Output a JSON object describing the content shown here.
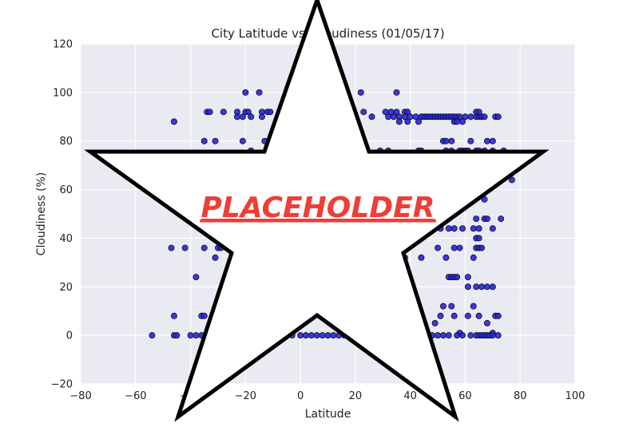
{
  "chart_data": {
    "type": "scatter",
    "title": "City Latitude vs. Cloudiness (01/05/17)",
    "xlabel": "Latitude",
    "ylabel": "Cloudiness (%)",
    "xlim": [
      -80,
      100
    ],
    "ylim": [
      -20,
      120
    ],
    "xticks": [
      -80,
      -60,
      -40,
      -20,
      0,
      20,
      40,
      60,
      80,
      100
    ],
    "yticks": [
      -20,
      0,
      20,
      40,
      60,
      80,
      100,
      120
    ],
    "grid": true,
    "colors": {
      "background": "#eaeaf2",
      "grid": "#ffffff",
      "point": "#2323e6",
      "point_edge": "#111111"
    },
    "series": [
      {
        "points": [
          [
            -54,
            0
          ],
          [
            -46,
            0
          ],
          [
            -45,
            0
          ],
          [
            -40,
            0
          ],
          [
            -38,
            0
          ],
          [
            -36,
            0
          ],
          [
            -34,
            0
          ],
          [
            -32,
            0
          ],
          [
            -46,
            8
          ],
          [
            -36,
            8
          ],
          [
            -35,
            8
          ],
          [
            -38,
            24
          ],
          [
            -47,
            36
          ],
          [
            -42,
            36
          ],
          [
            -35,
            36
          ],
          [
            -30,
            36
          ],
          [
            -29,
            36
          ],
          [
            -31,
            32
          ],
          [
            -46,
            88
          ],
          [
            -34,
            92
          ],
          [
            -33,
            92
          ],
          [
            -28,
            92
          ],
          [
            -23,
            92
          ],
          [
            -20,
            92
          ],
          [
            -19,
            92
          ],
          [
            -14,
            92
          ],
          [
            -12,
            92
          ],
          [
            -11,
            92
          ],
          [
            -23,
            90
          ],
          [
            -21,
            90
          ],
          [
            -18,
            90
          ],
          [
            -14,
            90
          ],
          [
            -35,
            80
          ],
          [
            -31,
            80
          ],
          [
            -21,
            80
          ],
          [
            -13,
            80
          ],
          [
            -18,
            76
          ],
          [
            -20,
            100
          ],
          [
            -15,
            100
          ],
          [
            -3,
            0
          ],
          [
            0,
            0
          ],
          [
            2,
            0
          ],
          [
            4,
            0
          ],
          [
            6,
            0
          ],
          [
            8,
            0
          ],
          [
            10,
            0
          ],
          [
            12,
            0
          ],
          [
            14,
            0
          ],
          [
            16,
            0
          ],
          [
            18,
            0
          ],
          [
            45,
            0
          ],
          [
            48,
            0
          ],
          [
            22,
            100
          ],
          [
            35,
            100
          ],
          [
            23,
            92
          ],
          [
            31,
            92
          ],
          [
            33,
            92
          ],
          [
            35,
            92
          ],
          [
            38,
            92
          ],
          [
            39,
            92
          ],
          [
            26,
            90
          ],
          [
            32,
            90
          ],
          [
            34,
            90
          ],
          [
            36,
            90
          ],
          [
            38,
            90
          ],
          [
            40,
            90
          ],
          [
            42,
            90
          ],
          [
            44,
            90
          ],
          [
            45,
            90
          ],
          [
            46,
            90
          ],
          [
            47,
            90
          ],
          [
            48,
            90
          ],
          [
            49,
            90
          ],
          [
            50,
            90
          ],
          [
            51,
            90
          ],
          [
            52,
            90
          ],
          [
            53,
            90
          ],
          [
            54,
            90
          ],
          [
            55,
            90
          ],
          [
            56,
            90
          ],
          [
            57,
            90
          ],
          [
            58,
            90
          ],
          [
            60,
            90
          ],
          [
            62,
            90
          ],
          [
            64,
            90
          ],
          [
            65,
            90
          ],
          [
            66,
            90
          ],
          [
            67,
            90
          ],
          [
            71,
            90
          ],
          [
            72,
            90
          ],
          [
            36,
            88
          ],
          [
            39,
            88
          ],
          [
            43,
            88
          ],
          [
            56,
            88
          ],
          [
            57,
            88
          ],
          [
            59,
            88
          ],
          [
            64,
            92
          ],
          [
            65,
            92
          ],
          [
            29,
            76
          ],
          [
            32,
            76
          ],
          [
            43,
            76
          ],
          [
            44,
            76
          ],
          [
            53,
            76
          ],
          [
            55,
            76
          ],
          [
            58,
            76
          ],
          [
            59,
            76
          ],
          [
            60,
            76
          ],
          [
            61,
            76
          ],
          [
            64,
            76
          ],
          [
            65,
            76
          ],
          [
            67,
            76
          ],
          [
            70,
            76
          ],
          [
            74,
            76
          ],
          [
            52,
            80
          ],
          [
            53,
            80
          ],
          [
            55,
            80
          ],
          [
            62,
            80
          ],
          [
            68,
            80
          ],
          [
            70,
            80
          ],
          [
            77,
            64
          ],
          [
            67,
            56
          ],
          [
            64,
            48
          ],
          [
            67,
            48
          ],
          [
            68,
            48
          ],
          [
            73,
            48
          ],
          [
            51,
            44
          ],
          [
            54,
            44
          ],
          [
            56,
            44
          ],
          [
            59,
            44
          ],
          [
            63,
            44
          ],
          [
            65,
            44
          ],
          [
            70,
            44
          ],
          [
            64,
            40
          ],
          [
            65,
            40
          ],
          [
            50,
            36
          ],
          [
            56,
            36
          ],
          [
            58,
            36
          ],
          [
            64,
            36
          ],
          [
            65,
            36
          ],
          [
            66,
            36
          ],
          [
            38,
            32
          ],
          [
            44,
            32
          ],
          [
            53,
            32
          ],
          [
            63,
            32
          ],
          [
            54,
            24
          ],
          [
            55,
            24
          ],
          [
            56,
            24
          ],
          [
            57,
            24
          ],
          [
            61,
            24
          ],
          [
            40,
            20
          ],
          [
            61,
            20
          ],
          [
            64,
            20
          ],
          [
            66,
            20
          ],
          [
            68,
            20
          ],
          [
            70,
            20
          ],
          [
            52,
            12
          ],
          [
            55,
            12
          ],
          [
            63,
            12
          ],
          [
            51,
            8
          ],
          [
            56,
            8
          ],
          [
            61,
            8
          ],
          [
            65,
            8
          ],
          [
            71,
            8
          ],
          [
            72,
            8
          ],
          [
            49,
            5
          ],
          [
            68,
            5
          ],
          [
            58,
            1
          ],
          [
            70,
            1
          ],
          [
            50,
            0
          ],
          [
            52,
            0
          ],
          [
            54,
            0
          ],
          [
            57,
            0
          ],
          [
            59,
            0
          ],
          [
            62,
            0
          ],
          [
            64,
            0
          ],
          [
            65,
            0
          ],
          [
            66,
            0
          ],
          [
            67,
            0
          ],
          [
            68,
            0
          ],
          [
            69,
            0
          ],
          [
            70,
            0
          ],
          [
            72,
            0
          ]
        ]
      }
    ]
  },
  "overlay": {
    "text": "PLACEHOLDER"
  }
}
